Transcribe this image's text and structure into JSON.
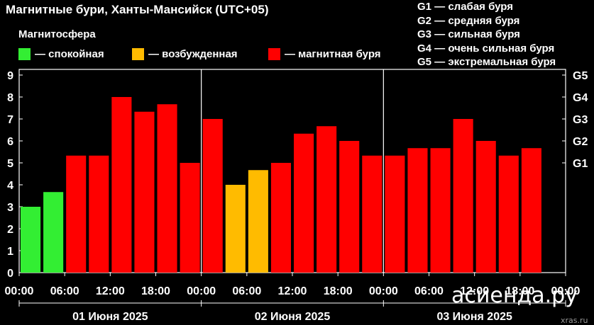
{
  "title": "Магнитные бури, Ханты-Мансийск (UTC+05)",
  "legend": {
    "title": "Магнитосфера",
    "items": [
      {
        "label": "— спокойная",
        "color": "#33ee33"
      },
      {
        "label": "— возбужденная",
        "color": "#ffbb00"
      },
      {
        "label": "— магнитная буря",
        "color": "#ff0000"
      }
    ]
  },
  "g_levels": [
    "G1 — слабая буря",
    "G2 — средняя буря",
    "G3 — сильная буря",
    "G4 — очень сильная буря",
    "G5 — экстремальная буря"
  ],
  "watermark": {
    "brand": "асиенда.ру",
    "source": "xras.ru"
  },
  "chart_data": {
    "type": "bar",
    "ylim": [
      0,
      9
    ],
    "y_ticks": [
      "0",
      "1",
      "2",
      "3",
      "4",
      "5",
      "6",
      "7",
      "8",
      "9"
    ],
    "right_axis_ticks": [
      {
        "label": "G1",
        "value": 5
      },
      {
        "label": "G2",
        "value": 6
      },
      {
        "label": "G3",
        "value": 7
      },
      {
        "label": "G4",
        "value": 8
      },
      {
        "label": "G5",
        "value": 9
      }
    ],
    "x_tick_labels": [
      "00:00",
      "06:00",
      "12:00",
      "18:00",
      "00:00",
      "06:00",
      "12:00",
      "18:00",
      "00:00",
      "06:00",
      "12:00",
      "18:00",
      "00:00"
    ],
    "days": [
      "01 Июня 2025",
      "02 Июня 2025",
      "03 Июня 2025"
    ],
    "colors": {
      "calm": "#33ee33",
      "excited": "#ffbb00",
      "storm": "#ff0000"
    },
    "values": [
      3.0,
      3.67,
      5.33,
      5.33,
      8.0,
      7.33,
      7.67,
      5.0,
      7.0,
      4.0,
      4.67,
      5.0,
      6.33,
      6.67,
      6.0,
      5.33,
      5.33,
      5.67,
      5.67,
      7.0,
      6.0,
      5.33,
      5.67
    ],
    "levels": [
      "calm",
      "calm",
      "storm",
      "storm",
      "storm",
      "storm",
      "storm",
      "storm",
      "storm",
      "excited",
      "excited",
      "storm",
      "storm",
      "storm",
      "storm",
      "storm",
      "storm",
      "storm",
      "storm",
      "storm",
      "storm",
      "storm",
      "storm"
    ],
    "grid": false
  }
}
